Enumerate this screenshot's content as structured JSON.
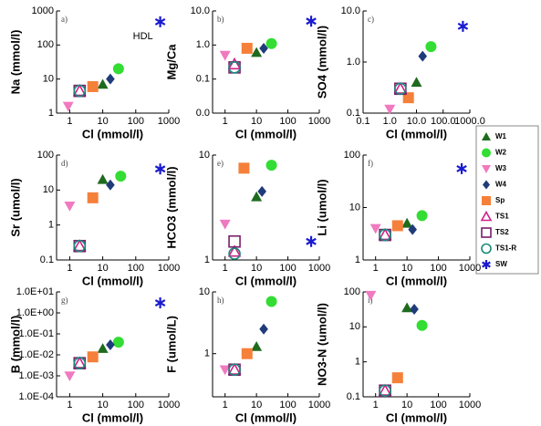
{
  "legend": [
    {
      "name": "W1",
      "color": "#1e6b1e",
      "marker": "triangle-up"
    },
    {
      "name": "W2",
      "color": "#33dd33",
      "marker": "circle"
    },
    {
      "name": "W3",
      "color": "#f07ac0",
      "marker": "triangle-down"
    },
    {
      "name": "W4",
      "color": "#1f3b7a",
      "marker": "diamond"
    },
    {
      "name": "Sp",
      "color": "#f5803a",
      "marker": "square"
    },
    {
      "name": "TS1",
      "color": "#d0208a",
      "marker": "triangle-up-open"
    },
    {
      "name": "TS2",
      "color": "#7a1e6b",
      "marker": "square-open"
    },
    {
      "name": "TS1-R",
      "color": "#1a8a7a",
      "marker": "circle-open"
    },
    {
      "name": "SW",
      "color": "#1a1ad0",
      "marker": "asterisk"
    }
  ],
  "chart_data": [
    {
      "type": "scatter",
      "panel": "a)",
      "xlabel": "Cl (mmol/l)",
      "ylabel": "Na (mmol/l)",
      "annotation": "HDL",
      "log": true,
      "xlim": [
        0.4,
        1000
      ],
      "xticks": [
        1,
        10,
        100,
        1000
      ],
      "ylim": [
        1,
        1000
      ],
      "yticks": [
        1,
        10,
        100,
        1000
      ],
      "series": [
        {
          "x": [
            10
          ],
          "values": [
            7
          ]
        },
        {
          "x": [
            30
          ],
          "values": [
            20
          ]
        },
        {
          "x": [
            0.9
          ],
          "values": [
            1.6
          ]
        },
        {
          "x": [
            17
          ],
          "values": [
            10
          ]
        },
        {
          "x": [
            5
          ],
          "values": [
            6
          ]
        },
        {
          "x": [
            2
          ],
          "values": [
            4.5
          ]
        },
        {
          "x": [
            2
          ],
          "values": [
            4.5
          ]
        },
        {
          "x": [
            2
          ],
          "values": [
            4.5
          ]
        },
        {
          "x": [
            550
          ],
          "values": [
            480
          ]
        }
      ]
    },
    {
      "type": "scatter",
      "panel": "b)",
      "xlabel": "Cl (mmol/l)",
      "ylabel": "Mg/Ca",
      "log": true,
      "xlim": [
        0.4,
        1000
      ],
      "xticks": [
        1,
        10,
        100,
        1000
      ],
      "ylim": [
        0.01,
        10
      ],
      "yticks": [
        {
          "value": 0.01,
          "label": "0.0"
        },
        {
          "value": 0.1,
          "label": "0.1"
        },
        {
          "value": 1,
          "label": "1.0"
        },
        {
          "value": 10,
          "label": "10.0"
        }
      ],
      "series": [
        {
          "x": [
            10
          ],
          "values": [
            0.6
          ]
        },
        {
          "x": [
            30
          ],
          "values": [
            1.1
          ]
        },
        {
          "x": [
            1
          ],
          "values": [
            0.5
          ]
        },
        {
          "x": [
            17
          ],
          "values": [
            0.8
          ]
        },
        {
          "x": [
            5
          ],
          "values": [
            0.8
          ]
        },
        {
          "x": [
            2
          ],
          "values": [
            0.27
          ]
        },
        {
          "x": [
            2
          ],
          "values": [
            0.22
          ]
        },
        {
          "x": [
            2
          ],
          "values": [
            0.22
          ]
        },
        {
          "x": [
            550
          ],
          "values": [
            5
          ]
        }
      ]
    },
    {
      "type": "scatter",
      "panel": "c)",
      "xlabel": "Cl (mmol/l)",
      "ylabel": "SO4 (mmol/l)",
      "log": true,
      "xlim": [
        0.1,
        1000
      ],
      "xticks": [
        0.1,
        {
          "value": 1,
          "label": "1.0"
        },
        {
          "value": 10,
          "label": "10.0"
        },
        {
          "value": 100,
          "label": "100.0"
        },
        {
          "value": 1000,
          "label": "1000.0"
        }
      ],
      "ylim": [
        0.1,
        10
      ],
      "yticks": [
        0.1,
        {
          "value": 1,
          "label": "1.0"
        },
        {
          "value": 10,
          "label": "10.0"
        }
      ],
      "series": [
        {
          "x": [
            10
          ],
          "values": [
            0.4
          ]
        },
        {
          "x": [
            35
          ],
          "values": [
            2
          ]
        },
        {
          "x": [
            1
          ],
          "values": [
            0.12
          ]
        },
        {
          "x": [
            17
          ],
          "values": [
            1.3
          ]
        },
        {
          "x": [
            5
          ],
          "values": [
            0.2
          ]
        },
        {
          "x": [
            2.5
          ],
          "values": [
            0.3
          ]
        },
        {
          "x": [
            2.5
          ],
          "values": [
            0.3
          ]
        },
        {
          "x": [
            2.5
          ],
          "values": [
            0.3
          ]
        },
        {
          "x": [
            550
          ],
          "values": [
            5
          ]
        }
      ]
    },
    {
      "type": "scatter",
      "panel": "d)",
      "xlabel": "Cl (mmol/l)",
      "ylabel": "Sr (umol/l)",
      "log": true,
      "xlim": [
        0.4,
        1000
      ],
      "xticks": [
        1,
        10,
        100,
        1000
      ],
      "ylim": [
        0.1,
        100
      ],
      "yticks": [
        0.1,
        1,
        10,
        100
      ],
      "series": [
        {
          "x": [
            10
          ],
          "values": [
            20
          ]
        },
        {
          "x": [
            35
          ],
          "values": [
            25
          ]
        },
        {
          "x": [
            1
          ],
          "values": [
            3.5
          ]
        },
        {
          "x": [
            17
          ],
          "values": [
            14
          ]
        },
        {
          "x": [
            5
          ],
          "values": [
            6
          ]
        },
        {
          "x": [
            2
          ],
          "values": [
            0.25
          ]
        },
        {
          "x": [
            2
          ],
          "values": [
            0.25
          ]
        },
        {
          "x": [
            2
          ],
          "values": [
            0.25
          ]
        },
        {
          "x": [
            550
          ],
          "values": [
            40
          ]
        }
      ]
    },
    {
      "type": "scatter",
      "panel": "e)",
      "xlabel": "Cl (mmol/l)",
      "ylabel": "HCO3 (mmol/l)",
      "log": true,
      "xlim": [
        0.4,
        1000
      ],
      "xticks": [
        1,
        10,
        100,
        1000
      ],
      "ylim": [
        1,
        10
      ],
      "yticks": [
        1,
        10
      ],
      "series": [
        {
          "x": [
            10
          ],
          "values": [
            4
          ]
        },
        {
          "x": [
            30
          ],
          "values": [
            8
          ]
        },
        {
          "x": [
            1
          ],
          "values": [
            2.2
          ]
        },
        {
          "x": [
            15
          ],
          "values": [
            4.5
          ]
        },
        {
          "x": [
            4
          ],
          "values": [
            7.5
          ]
        },
        {
          "x": [
            2
          ],
          "values": [
            1.2
          ]
        },
        {
          "x": [
            2
          ],
          "values": [
            1.5
          ]
        },
        {
          "x": [
            2
          ],
          "values": [
            1.15
          ]
        },
        {
          "x": [
            550
          ],
          "values": [
            1.5
          ]
        }
      ]
    },
    {
      "type": "scatter",
      "panel": "f)",
      "xlabel": "Cl (mmol/l)",
      "ylabel": "Li (umol/l)",
      "log": true,
      "xlim": [
        0.4,
        1000
      ],
      "xticks": [
        1,
        10,
        100,
        1000
      ],
      "ylim": [
        1,
        100
      ],
      "yticks": [
        1,
        10,
        100
      ],
      "series": [
        {
          "x": [
            10
          ],
          "values": [
            5
          ]
        },
        {
          "x": [
            30
          ],
          "values": [
            7
          ]
        },
        {
          "x": [
            1
          ],
          "values": [
            4
          ]
        },
        {
          "x": [
            15
          ],
          "values": [
            3.8
          ]
        },
        {
          "x": [
            5
          ],
          "values": [
            4.5
          ]
        },
        {
          "x": [
            2
          ],
          "values": [
            3
          ]
        },
        {
          "x": [
            2
          ],
          "values": [
            3
          ]
        },
        {
          "x": [
            2
          ],
          "values": [
            3
          ]
        },
        {
          "x": [
            550
          ],
          "values": [
            55
          ]
        }
      ]
    },
    {
      "type": "scatter",
      "panel": "g)",
      "xlabel": "Cl (mmol/l)",
      "ylabel": "B (mmol/l)",
      "log": true,
      "xlim": [
        0.4,
        1000
      ],
      "xticks": [
        1,
        10,
        100,
        1000
      ],
      "ylim": [
        0.0001,
        10
      ],
      "yticks": [
        {
          "value": 0.0001,
          "label": "1.0E-04"
        },
        {
          "value": 0.001,
          "label": "1.0E-03"
        },
        {
          "value": 0.01,
          "label": "1.0E-02"
        },
        {
          "value": 0.1,
          "label": "1.0E-01"
        },
        {
          "value": 1,
          "label": "1.0E+00"
        },
        {
          "value": 10,
          "label": "1.0E+01"
        }
      ],
      "series": [
        {
          "x": [
            10
          ],
          "values": [
            0.02
          ]
        },
        {
          "x": [
            30
          ],
          "values": [
            0.04
          ]
        },
        {
          "x": [
            1
          ],
          "values": [
            0.001
          ]
        },
        {
          "x": [
            17
          ],
          "values": [
            0.03
          ]
        },
        {
          "x": [
            5
          ],
          "values": [
            0.008
          ]
        },
        {
          "x": [
            2
          ],
          "values": [
            0.004
          ]
        },
        {
          "x": [
            2
          ],
          "values": [
            0.004
          ]
        },
        {
          "x": [
            2
          ],
          "values": [
            0.004
          ]
        },
        {
          "x": [
            550
          ],
          "values": [
            3
          ]
        }
      ]
    },
    {
      "type": "scatter",
      "panel": "h)",
      "xlabel": "Cl (mmol/l)",
      "ylabel": "F (umol/L)",
      "log": true,
      "xlim": [
        0.4,
        1000
      ],
      "xticks": [
        1,
        10,
        100,
        1000
      ],
      "ylim": [
        0.2,
        10
      ],
      "yticks": [
        1,
        10
      ],
      "series": [
        {
          "x": [
            10
          ],
          "values": [
            1.3
          ]
        },
        {
          "x": [
            30
          ],
          "values": [
            7
          ]
        },
        {
          "x": [
            1
          ],
          "values": [
            0.55
          ]
        },
        {
          "x": [
            17
          ],
          "values": [
            2.5
          ]
        },
        {
          "x": [
            5
          ],
          "values": [
            1
          ]
        },
        {
          "x": [
            2
          ],
          "values": [
            0.55
          ]
        },
        {
          "x": [
            2
          ],
          "values": [
            0.55
          ]
        },
        {
          "x": [
            2
          ],
          "values": [
            0.55
          ]
        }
      ]
    },
    {
      "type": "scatter",
      "panel": "i)",
      "xlabel": "Cl (mmol/l)",
      "ylabel": "NO3-N (umol/l)",
      "log": true,
      "xlim": [
        0.4,
        1000
      ],
      "xticks": [
        1,
        10,
        100,
        1000
      ],
      "ylim": [
        0.1,
        100
      ],
      "yticks": [
        0.1,
        1,
        10,
        100
      ],
      "series": [
        {
          "x": [
            10
          ],
          "values": [
            35
          ]
        },
        {
          "x": [
            30
          ],
          "values": [
            11
          ]
        },
        {
          "x": [
            0.7
          ],
          "values": [
            80
          ]
        },
        {
          "x": [
            17
          ],
          "values": [
            32
          ]
        },
        {
          "x": [
            5
          ],
          "values": [
            0.35
          ]
        },
        {
          "x": [
            2
          ],
          "values": [
            0.15
          ]
        },
        {
          "x": [
            2
          ],
          "values": [
            0.15
          ]
        },
        {
          "x": [
            2
          ],
          "values": [
            0.15
          ]
        }
      ]
    }
  ]
}
